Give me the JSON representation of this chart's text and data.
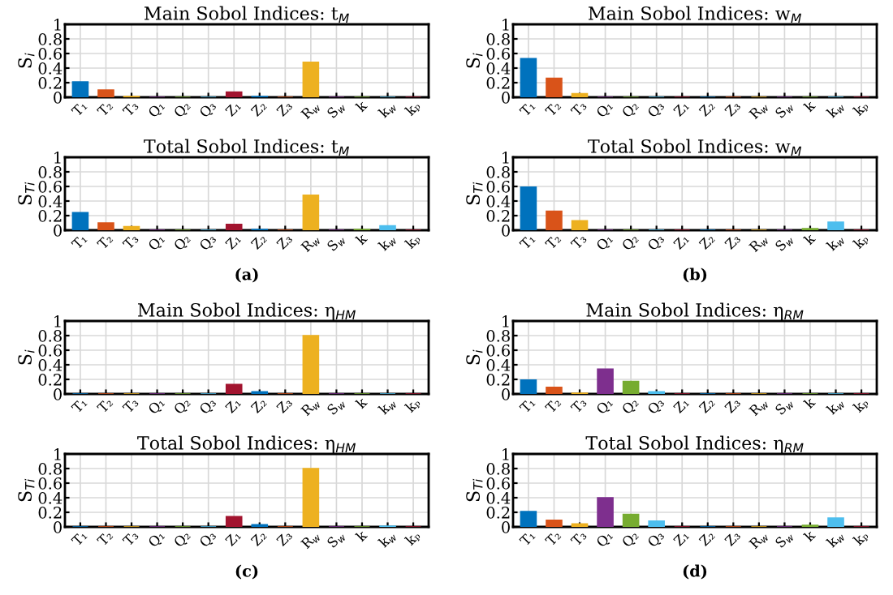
{
  "chart_data": [
    {
      "type": "bar",
      "title": "Main Sobol Indices: t$_{M}$",
      "ylabel": "S$_{i}$",
      "categories": [
        "T₁",
        "T₂",
        "T₃",
        "Q₁",
        "Q₂",
        "Q₃",
        "Z₁",
        "Z₂",
        "Z₃",
        "R$_{w}$",
        "S$_{w}$",
        "k",
        "k$_{w}$",
        "kₚ"
      ],
      "values": [
        0.21,
        0.1,
        0.01,
        0,
        0,
        0,
        0.07,
        0.01,
        0,
        0.48,
        0,
        0,
        0,
        0
      ],
      "colors": [
        "#0072bd",
        "#d95319",
        "#edb120",
        "#7e2f8e",
        "#77ac30",
        "#4dbeee",
        "#a2142f",
        "#0072bd",
        "#d95319",
        "#edb120",
        "#7e2f8e",
        "#77ac30",
        "#4dbeee",
        "#a2142f"
      ],
      "ylim": [
        0,
        1
      ],
      "yticks": [
        0,
        0.2,
        0.4,
        0.6,
        0.8,
        1
      ],
      "grid": true
    },
    {
      "type": "bar",
      "title": "Main Sobol Indices: w$_{M}$",
      "ylabel": "S$_{i}$",
      "categories": [
        "T₁",
        "T₂",
        "T₃",
        "Q₁",
        "Q₂",
        "Q₃",
        "Z₁",
        "Z₂",
        "Z₃",
        "R$_{w}$",
        "S$_{w}$",
        "k",
        "k$_{w}$",
        "kₚ"
      ],
      "values": [
        0.53,
        0.26,
        0.05,
        0,
        0,
        0,
        0,
        0,
        0,
        0,
        0,
        0,
        0,
        0
      ],
      "colors": [
        "#0072bd",
        "#d95319",
        "#edb120",
        "#7e2f8e",
        "#77ac30",
        "#4dbeee",
        "#a2142f",
        "#0072bd",
        "#d95319",
        "#edb120",
        "#7e2f8e",
        "#77ac30",
        "#4dbeee",
        "#a2142f"
      ],
      "ylim": [
        0,
        1
      ],
      "yticks": [
        0,
        0.2,
        0.4,
        0.6,
        0.8,
        1
      ],
      "grid": true
    },
    {
      "type": "bar",
      "title": "Total Sobol Indices: t$_{M}$",
      "ylabel": "S$_{Ti}$",
      "annotations": [
        "(a)"
      ],
      "categories": [
        "T₁",
        "T₂",
        "T₃",
        "Q₁",
        "Q₂",
        "Q₃",
        "Z₁",
        "Z₂",
        "Z₃",
        "R$_{w}$",
        "S$_{w}$",
        "k",
        "k$_{w}$",
        "kₚ"
      ],
      "values": [
        0.24,
        0.1,
        0.05,
        0,
        0,
        0,
        0.08,
        0.01,
        0,
        0.48,
        0,
        0.01,
        0.06,
        0
      ],
      "colors": [
        "#0072bd",
        "#d95319",
        "#edb120",
        "#7e2f8e",
        "#77ac30",
        "#4dbeee",
        "#a2142f",
        "#0072bd",
        "#d95319",
        "#edb120",
        "#7e2f8e",
        "#77ac30",
        "#4dbeee",
        "#a2142f"
      ],
      "ylim": [
        0,
        1
      ],
      "yticks": [
        0,
        0.2,
        0.4,
        0.6,
        0.8,
        1
      ],
      "grid": true
    },
    {
      "type": "bar",
      "title": "Total Sobol Indices: w$_{M}$",
      "ylabel": "S$_{Ti}$",
      "annotations": [
        "(b)"
      ],
      "categories": [
        "T₁",
        "T₂",
        "T₃",
        "Q₁",
        "Q₂",
        "Q₃",
        "Z₁",
        "Z₂",
        "Z₃",
        "R$_{w}$",
        "S$_{w}$",
        "k",
        "k$_{w}$",
        "kₚ"
      ],
      "values": [
        0.59,
        0.26,
        0.13,
        0,
        0,
        0,
        0,
        0,
        0,
        0,
        0,
        0.02,
        0.11,
        0
      ],
      "colors": [
        "#0072bd",
        "#d95319",
        "#edb120",
        "#7e2f8e",
        "#77ac30",
        "#4dbeee",
        "#a2142f",
        "#0072bd",
        "#d95319",
        "#edb120",
        "#7e2f8e",
        "#77ac30",
        "#4dbeee",
        "#a2142f"
      ],
      "ylim": [
        0,
        1
      ],
      "yticks": [
        0,
        0.2,
        0.4,
        0.6,
        0.8,
        1
      ],
      "grid": true
    },
    {
      "type": "bar",
      "title": "Main Sobol Indices: η$_{HM}$",
      "ylabel": "S$_{i}$",
      "categories": [
        "T₁",
        "T₂",
        "T₃",
        "Q₁",
        "Q₂",
        "Q₃",
        "Z₁",
        "Z₂",
        "Z₃",
        "R$_{w}$",
        "S$_{w}$",
        "k",
        "k$_{w}$",
        "kₚ"
      ],
      "values": [
        0,
        0,
        0,
        0,
        0,
        0,
        0.13,
        0.03,
        0,
        0.8,
        0,
        0,
        0,
        0
      ],
      "colors": [
        "#0072bd",
        "#d95319",
        "#edb120",
        "#7e2f8e",
        "#77ac30",
        "#4dbeee",
        "#a2142f",
        "#0072bd",
        "#d95319",
        "#edb120",
        "#7e2f8e",
        "#77ac30",
        "#4dbeee",
        "#a2142f"
      ],
      "ylim": [
        0,
        1
      ],
      "yticks": [
        0,
        0.2,
        0.4,
        0.6,
        0.8,
        1
      ],
      "grid": true
    },
    {
      "type": "bar",
      "title": "Main Sobol Indices: η$_{RM}$",
      "ylabel": "S$_{i}$",
      "categories": [
        "T₁",
        "T₂",
        "T₃",
        "Q₁",
        "Q₂",
        "Q₃",
        "Z₁",
        "Z₂",
        "Z₃",
        "R$_{w}$",
        "S$_{w}$",
        "k",
        "k$_{w}$",
        "kₚ"
      ],
      "values": [
        0.19,
        0.09,
        0.01,
        0.34,
        0.17,
        0.03,
        0,
        0,
        0,
        0,
        0,
        0,
        0,
        0
      ],
      "colors": [
        "#0072bd",
        "#d95319",
        "#edb120",
        "#7e2f8e",
        "#77ac30",
        "#4dbeee",
        "#a2142f",
        "#0072bd",
        "#d95319",
        "#edb120",
        "#7e2f8e",
        "#77ac30",
        "#4dbeee",
        "#a2142f"
      ],
      "ylim": [
        0,
        1
      ],
      "yticks": [
        0,
        0.2,
        0.4,
        0.6,
        0.8,
        1
      ],
      "grid": true
    },
    {
      "type": "bar",
      "title": "Total Sobol Indices: η$_{HM}$",
      "ylabel": "S$_{Ti}$",
      "annotations": [
        "(c)"
      ],
      "categories": [
        "T₁",
        "T₂",
        "T₃",
        "Q₁",
        "Q₂",
        "Q₃",
        "Z₁",
        "Z₂",
        "Z₃",
        "R$_{w}$",
        "S$_{w}$",
        "k",
        "k$_{w}$",
        "kₚ"
      ],
      "values": [
        0,
        0,
        0,
        0,
        0,
        0,
        0.14,
        0.03,
        0,
        0.8,
        0,
        0,
        0.01,
        0
      ],
      "colors": [
        "#0072bd",
        "#d95319",
        "#edb120",
        "#7e2f8e",
        "#77ac30",
        "#4dbeee",
        "#a2142f",
        "#0072bd",
        "#d95319",
        "#edb120",
        "#7e2f8e",
        "#77ac30",
        "#4dbeee",
        "#a2142f"
      ],
      "ylim": [
        0,
        1
      ],
      "yticks": [
        0,
        0.2,
        0.4,
        0.6,
        0.8,
        1
      ],
      "grid": true
    },
    {
      "type": "bar",
      "title": "Total Sobol Indices: η$_{RM}$",
      "ylabel": "S$_{Ti}$",
      "annotations": [
        "(d)"
      ],
      "categories": [
        "T₁",
        "T₂",
        "T₃",
        "Q₁",
        "Q₂",
        "Q₃",
        "Z₁",
        "Z₂",
        "Z₃",
        "R$_{w}$",
        "S$_{w}$",
        "k",
        "k$_{w}$",
        "kₚ"
      ],
      "values": [
        0.21,
        0.09,
        0.04,
        0.4,
        0.17,
        0.08,
        0,
        0,
        0,
        0,
        0,
        0.02,
        0.12,
        0
      ],
      "colors": [
        "#0072bd",
        "#d95319",
        "#edb120",
        "#7e2f8e",
        "#77ac30",
        "#4dbeee",
        "#a2142f",
        "#0072bd",
        "#d95319",
        "#edb120",
        "#7e2f8e",
        "#77ac30",
        "#4dbeee",
        "#a2142f"
      ],
      "ylim": [
        0,
        1
      ],
      "yticks": [
        0,
        0.2,
        0.4,
        0.6,
        0.8,
        1
      ],
      "grid": true
    }
  ]
}
